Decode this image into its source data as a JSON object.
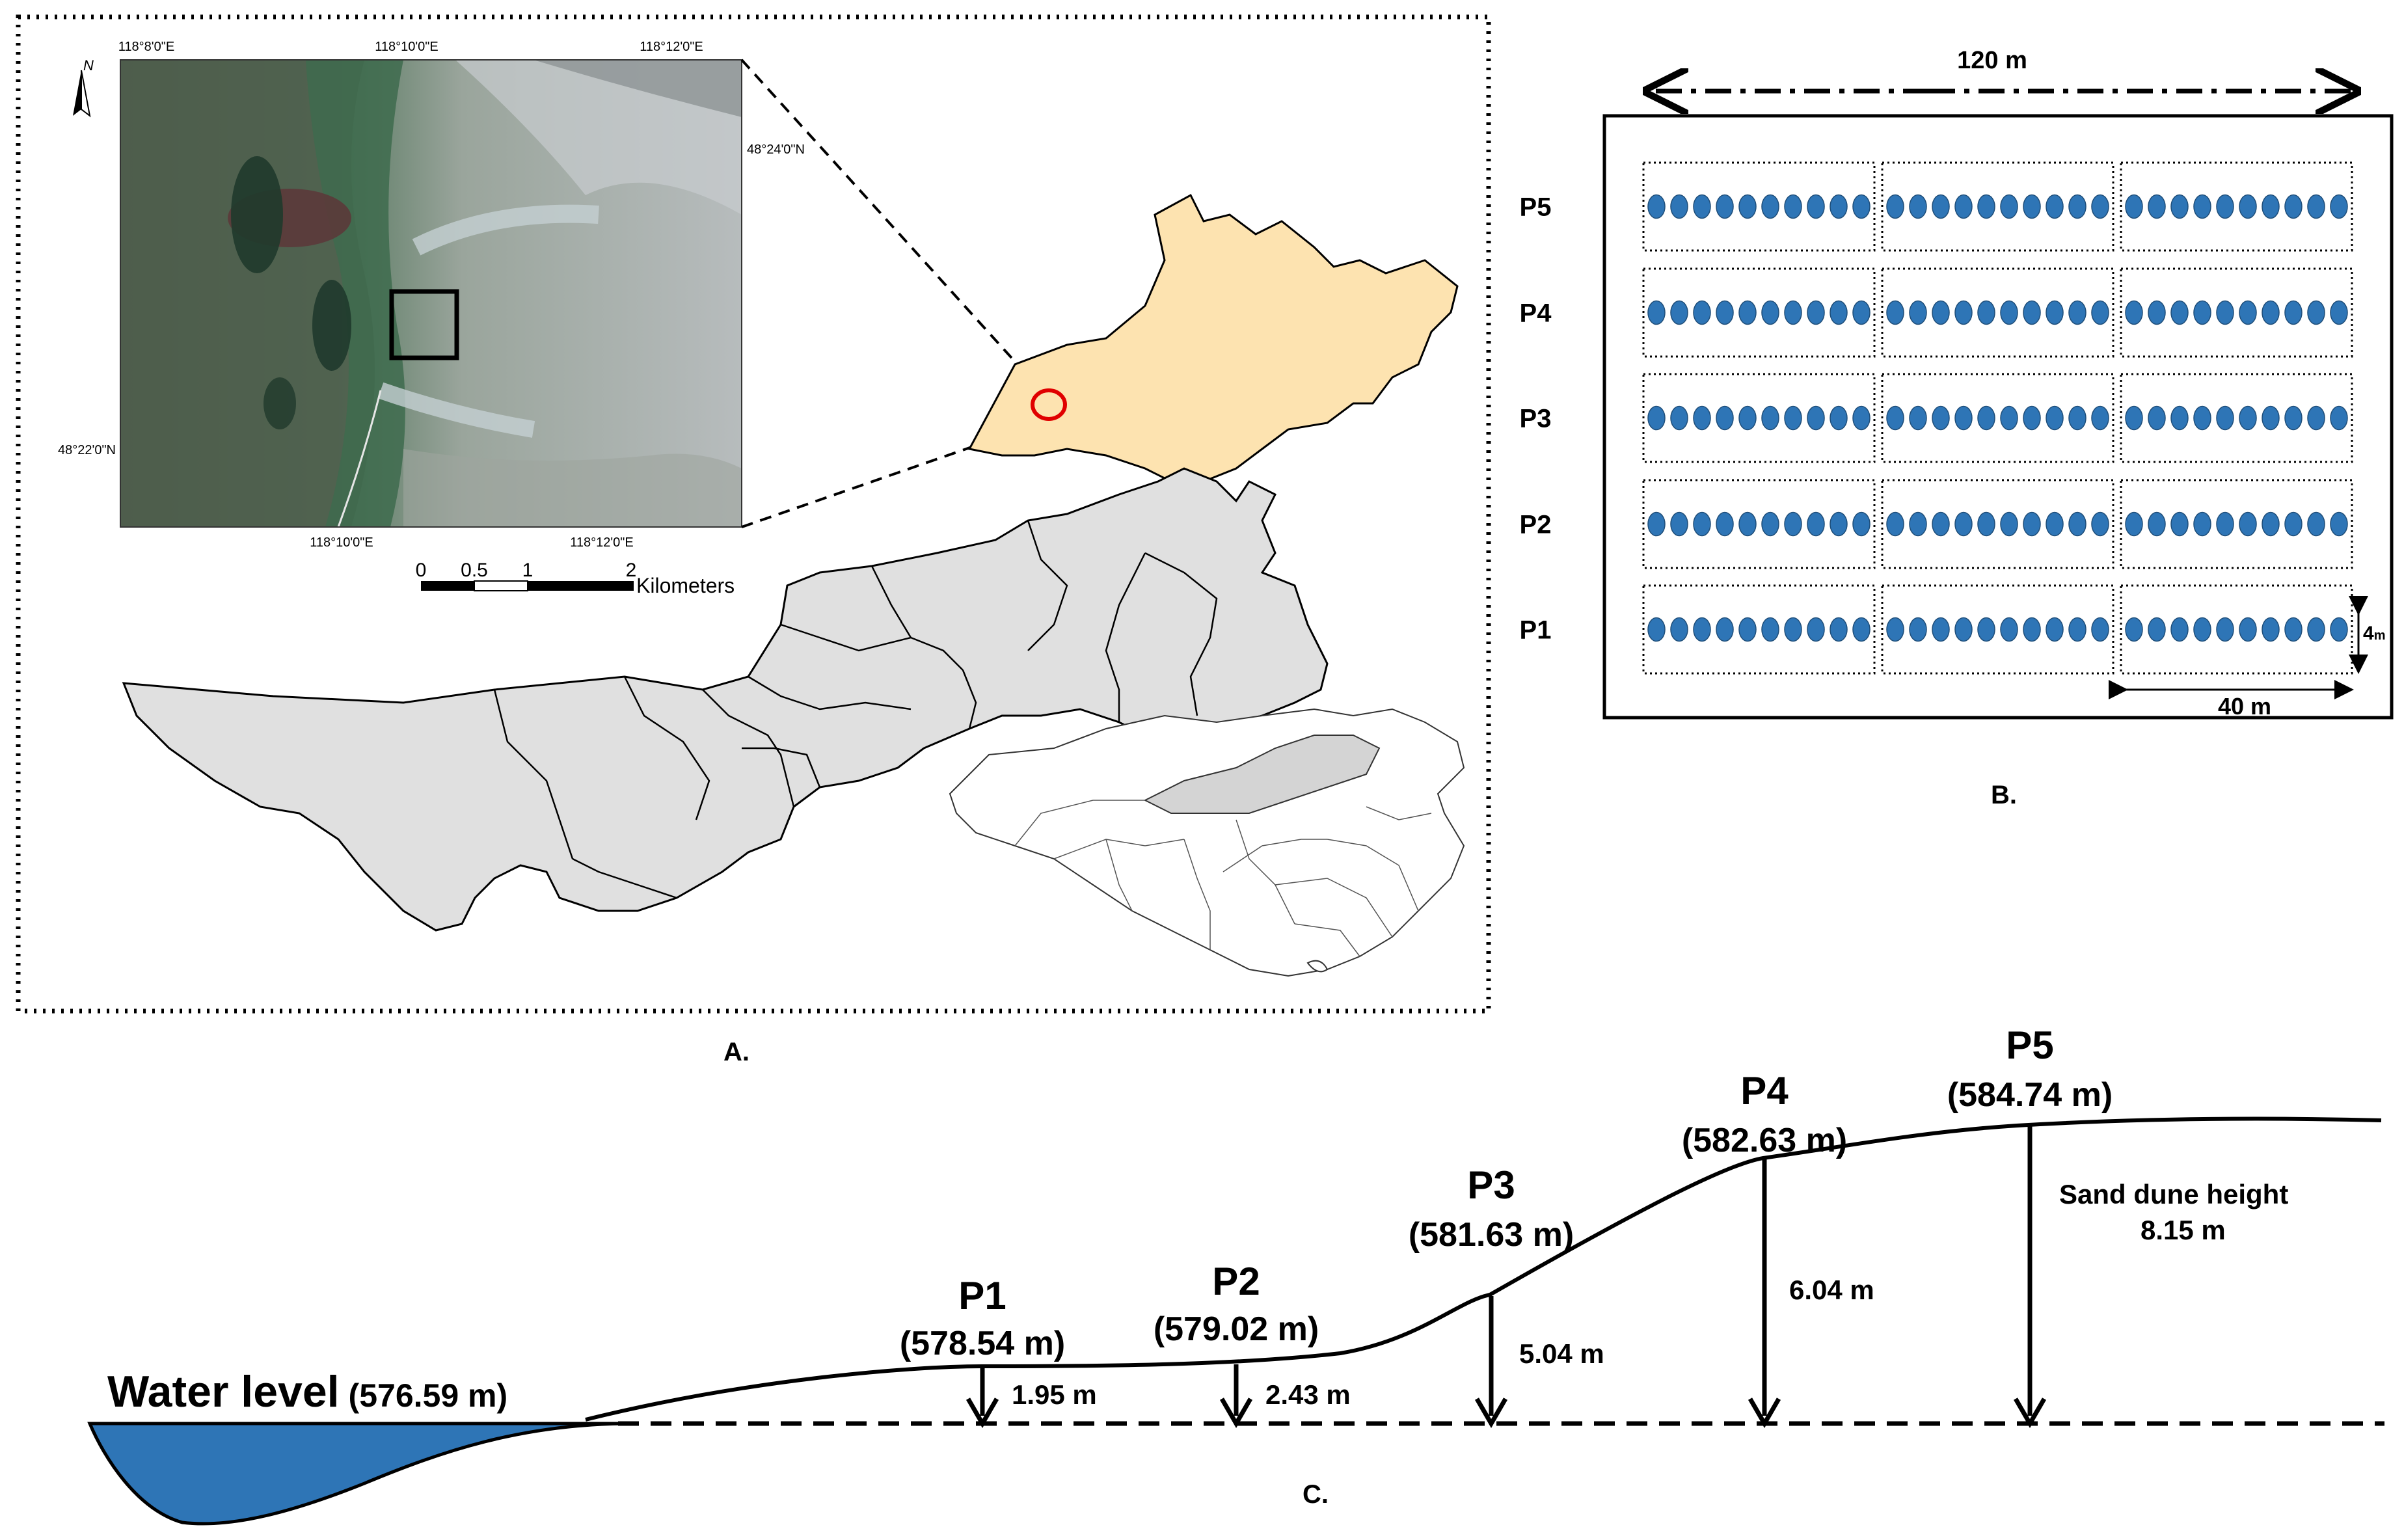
{
  "panel_a": {
    "caption": "A.",
    "coords": {
      "lon_top_1": "118°8'0\"E",
      "lon_top_2": "118°10'0\"E",
      "lon_top_3": "118°12'0\"E",
      "lon_bottom_1": "118°10'0\"E",
      "lon_bottom_2": "118°12'0\"E",
      "lat_right": "48°24'0\"N",
      "lat_left": "48°22'0\"N"
    },
    "north_label": "N",
    "scale_bar": {
      "t0": "0",
      "t1": "0.5",
      "t2": "1",
      "t3": "2",
      "unit": "Kilometers"
    }
  },
  "panel_b": {
    "caption": "B.",
    "width_label": "120 m",
    "plot_length_label": "40 m",
    "plot_width_label": "4",
    "plot_width_unit": "m",
    "rows": [
      "P5",
      "P4",
      "P3",
      "P2",
      "P1"
    ],
    "dots_per_plot": 10,
    "plots_per_row": 3,
    "dot_color": "#2e75b6"
  },
  "panel_c": {
    "caption": "C.",
    "water_label": "Water level",
    "water_value": "(576.59 m)",
    "water_color": "#2e75b6",
    "points": [
      {
        "name": "P1",
        "elev": "(578.54 m)",
        "depth": "1.95 m"
      },
      {
        "name": "P2",
        "elev": "(579.02 m)",
        "depth": "2.43 m"
      },
      {
        "name": "P3",
        "elev": "(581.63 m)",
        "depth": "5.04 m"
      },
      {
        "name": "P4",
        "elev": "(582.63 m)",
        "depth": "6.04 m"
      },
      {
        "name": "P5",
        "elev": "(584.74 m)",
        "depth": ""
      }
    ],
    "dune_label": "Sand dune height",
    "dune_value": "8.15 m"
  }
}
